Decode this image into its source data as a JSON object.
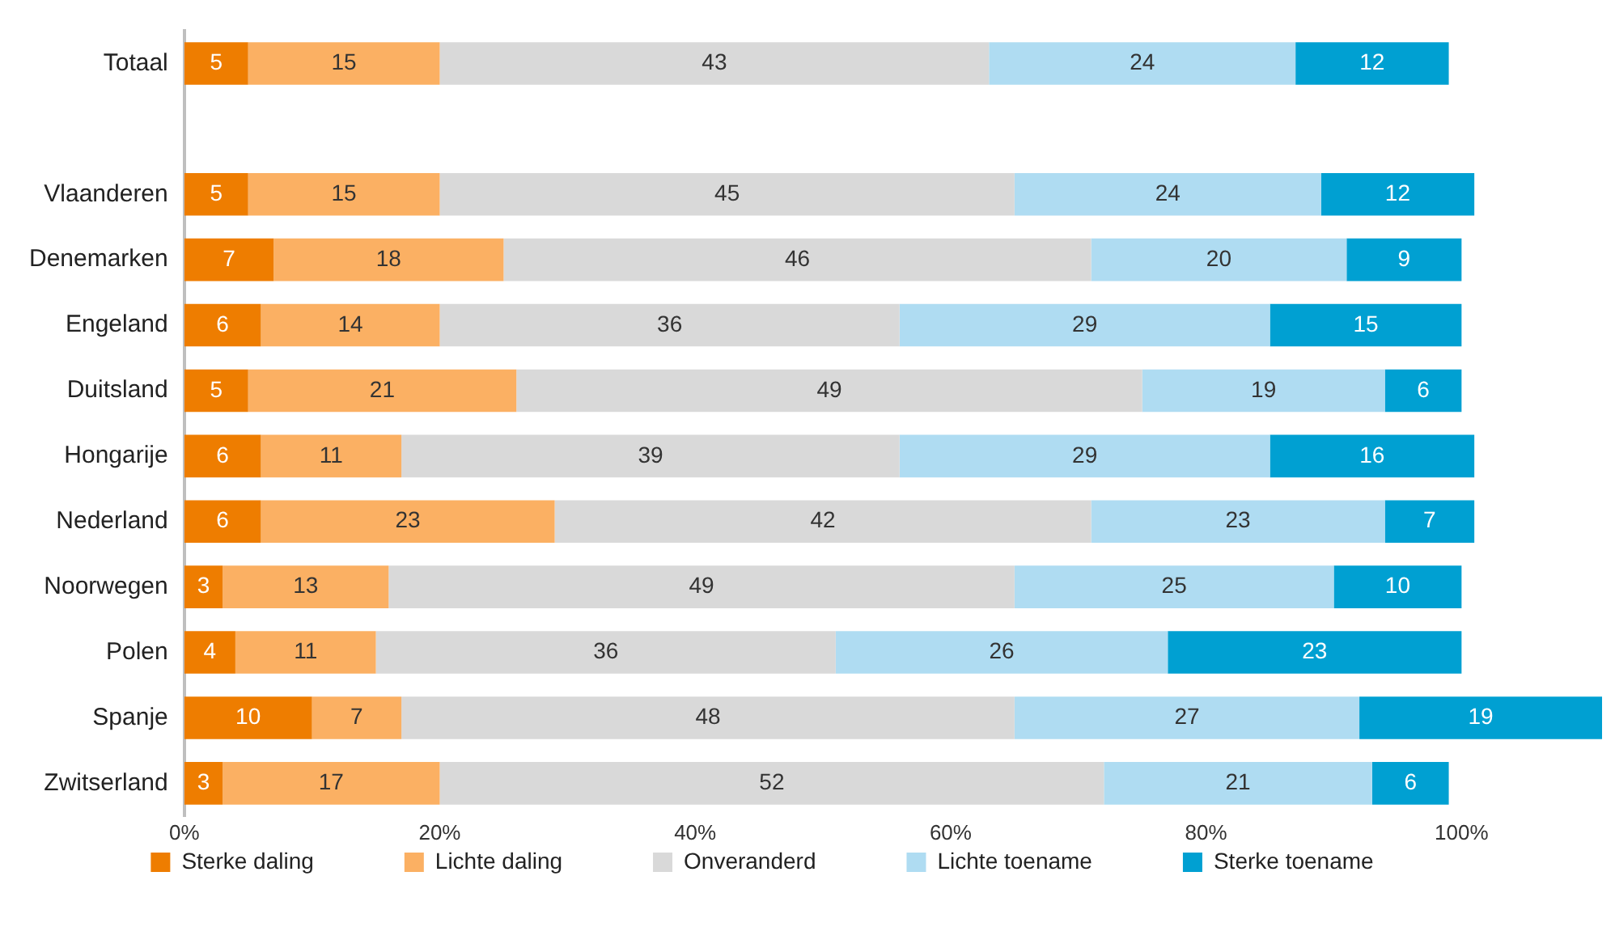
{
  "chart_data": {
    "type": "bar",
    "orientation": "horizontal",
    "stacked": true,
    "categories": [
      "Totaal",
      null,
      "Vlaanderen",
      "Denemarken",
      "Engeland",
      "Duitsland",
      "Hongarije",
      "Nederland",
      "Noorwegen",
      "Polen",
      "Spanje",
      "Zwitserland"
    ],
    "series": [
      {
        "name": "Sterke daling",
        "color": "#ee7d00",
        "values": [
          5,
          null,
          5,
          7,
          6,
          5,
          6,
          6,
          3,
          4,
          10,
          3
        ]
      },
      {
        "name": "Lichte daling",
        "color": "#fbb063",
        "values": [
          15,
          null,
          15,
          18,
          14,
          21,
          11,
          23,
          13,
          11,
          7,
          17
        ]
      },
      {
        "name": "Onveranderd",
        "color": "#d9d9d9",
        "values": [
          43,
          null,
          45,
          46,
          36,
          49,
          39,
          42,
          49,
          36,
          48,
          52
        ]
      },
      {
        "name": "Lichte toename",
        "color": "#afdcf2",
        "values": [
          24,
          null,
          24,
          20,
          29,
          19,
          29,
          23,
          25,
          26,
          27,
          21
        ]
      },
      {
        "name": "Sterke toename",
        "color": "#00a0d2",
        "values": [
          12,
          null,
          12,
          9,
          15,
          6,
          16,
          7,
          10,
          23,
          19,
          6
        ]
      }
    ],
    "xlim": [
      0,
      111
    ],
    "xticks": [
      {
        "value": 0,
        "label": "0%"
      },
      {
        "value": 20,
        "label": "20%"
      },
      {
        "value": 40,
        "label": "40%"
      },
      {
        "value": 60,
        "label": "60%"
      },
      {
        "value": 80,
        "label": "80%"
      },
      {
        "value": 100,
        "label": "100%"
      }
    ],
    "data_labels": true,
    "grid": false,
    "legend": "bottom"
  }
}
